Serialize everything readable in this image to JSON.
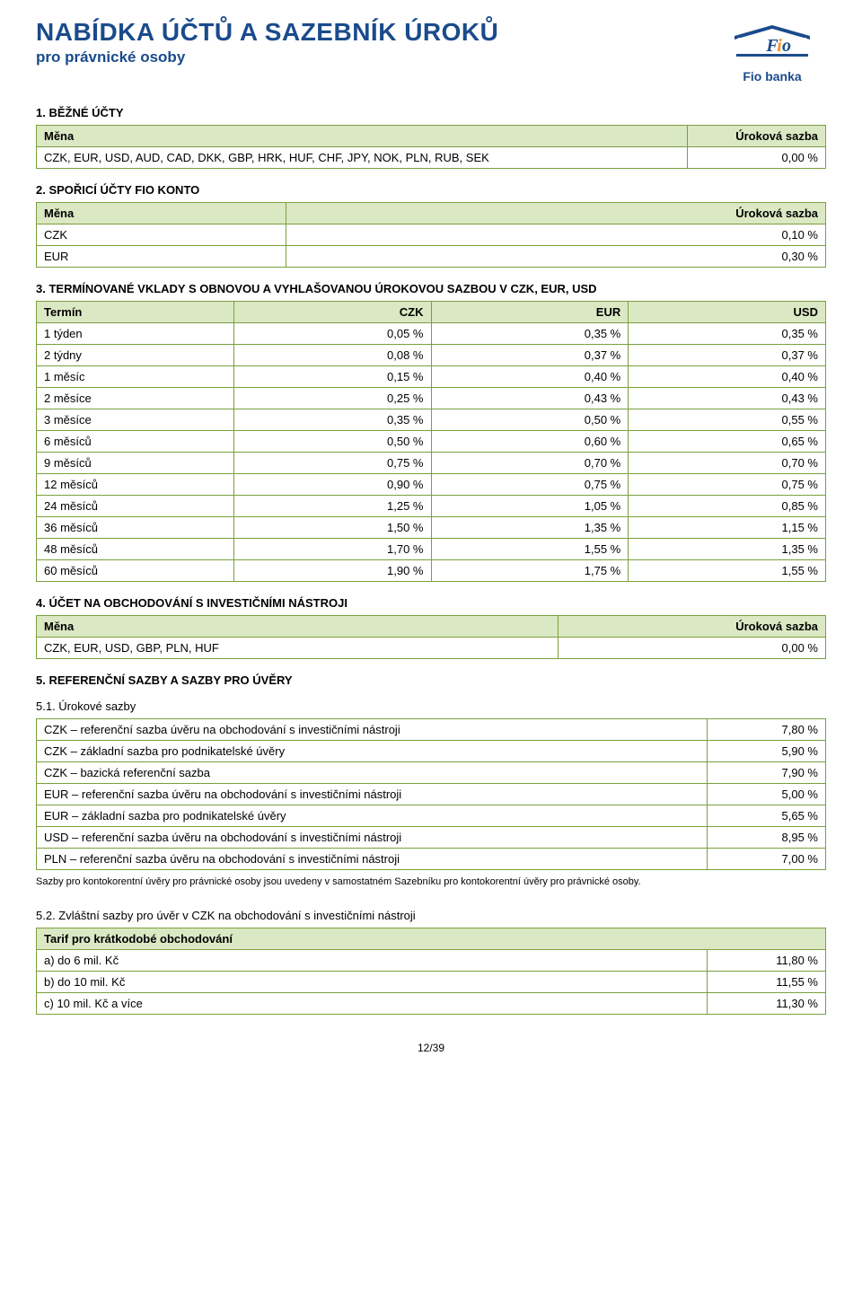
{
  "header": {
    "title": "NABÍDKA ÚČTŮ A SAZEBNÍK ÚROKŮ",
    "subtitle": "pro právnické osoby",
    "logoText": "Fio banka"
  },
  "colors": {
    "brandBlue": "#1a4b8c",
    "tableBorder": "#7aa03c",
    "tableHeaderBg": "#dbe8c4",
    "logoOrange": "#f7941e"
  },
  "section1": {
    "title": "1. BĚŽNÉ ÚČTY",
    "cols": [
      "Měna",
      "Úroková sazba"
    ],
    "row": {
      "currencies": "CZK, EUR, USD, AUD, CAD, DKK, GBP, HRK, HUF, CHF, JPY, NOK, PLN, RUB, SEK",
      "rate": "0,00 %"
    }
  },
  "section2": {
    "title": "2. SPOŘICÍ ÚČTY FIO KONTO",
    "cols": [
      "Měna",
      "Úroková sazba"
    ],
    "rows": [
      {
        "currency": "CZK",
        "rate": "0,10 %"
      },
      {
        "currency": "EUR",
        "rate": "0,30 %"
      }
    ]
  },
  "section3": {
    "title": "3. TERMÍNOVANÉ VKLADY S OBNOVOU A VYHLAŠOVANOU ÚROKOVOU SAZBOU V CZK, EUR, USD",
    "cols": [
      "Termín",
      "CZK",
      "EUR",
      "USD"
    ],
    "rows": [
      {
        "term": "1 týden",
        "czk": "0,05 %",
        "eur": "0,35 %",
        "usd": "0,35 %"
      },
      {
        "term": "2 týdny",
        "czk": "0,08 %",
        "eur": "0,37 %",
        "usd": "0,37 %"
      },
      {
        "term": "1 měsíc",
        "czk": "0,15 %",
        "eur": "0,40 %",
        "usd": "0,40 %"
      },
      {
        "term": "2 měsíce",
        "czk": "0,25 %",
        "eur": "0,43 %",
        "usd": "0,43 %"
      },
      {
        "term": "3 měsíce",
        "czk": "0,35 %",
        "eur": "0,50 %",
        "usd": "0,55 %"
      },
      {
        "term": "6 měsíců",
        "czk": "0,50 %",
        "eur": "0,60 %",
        "usd": "0,65 %"
      },
      {
        "term": "9 měsíců",
        "czk": "0,75 %",
        "eur": "0,70 %",
        "usd": "0,70 %"
      },
      {
        "term": "12 měsíců",
        "czk": "0,90 %",
        "eur": "0,75 %",
        "usd": "0,75 %"
      },
      {
        "term": "24 měsíců",
        "czk": "1,25 %",
        "eur": "1,05 %",
        "usd": "0,85 %"
      },
      {
        "term": "36 měsíců",
        "czk": "1,50 %",
        "eur": "1,35 %",
        "usd": "1,15 %"
      },
      {
        "term": "48 měsíců",
        "czk": "1,70 %",
        "eur": "1,55 %",
        "usd": "1,35 %"
      },
      {
        "term": "60 měsíců",
        "czk": "1,90 %",
        "eur": "1,75 %",
        "usd": "1,55 %"
      }
    ]
  },
  "section4": {
    "title": "4. ÚČET NA OBCHODOVÁNÍ S INVESTIČNÍMI NÁSTROJI",
    "cols": [
      "Měna",
      "Úroková sazba"
    ],
    "row": {
      "currencies": "CZK, EUR, USD, GBP, PLN, HUF",
      "rate": "0,00 %"
    }
  },
  "section5": {
    "title": "5. REFERENČNÍ SAZBY A SAZBY PRO ÚVĚRY",
    "sub1": "5.1. Úrokové sazby",
    "rows": [
      {
        "label": "CZK – referenční sazba úvěru na obchodování s investičními nástroji",
        "rate": "7,80 %"
      },
      {
        "label": "CZK – základní sazba pro podnikatelské úvěry",
        "rate": "5,90 %"
      },
      {
        "label": "CZK – bazická referenční sazba",
        "rate": "7,90 %"
      },
      {
        "label": "EUR – referenční sazba úvěru na obchodování s investičními nástroji",
        "rate": "5,00 %"
      },
      {
        "label": "EUR – základní sazba pro podnikatelské úvěry",
        "rate": "5,65 %"
      },
      {
        "label": "USD – referenční sazba úvěru na obchodování s investičními nástroji",
        "rate": "8,95 %"
      },
      {
        "label": "PLN – referenční sazba úvěru na obchodování s investičními nástroji",
        "rate": "7,00 %"
      }
    ],
    "note": "Sazby pro kontokorentní úvěry pro právnické osoby jsou uvedeny v samostatném Sazebníku pro kontokorentní úvěry pro právnické osoby."
  },
  "section52": {
    "title": "5.2. Zvláštní sazby pro úvěr v CZK na obchodování s investičními nástroji",
    "header": "Tarif pro krátkodobé obchodování",
    "rows": [
      {
        "label": "a) do 6 mil. Kč",
        "rate": "11,80 %"
      },
      {
        "label": "b) do 10 mil. Kč",
        "rate": "11,55 %"
      },
      {
        "label": "c) 10 mil. Kč a více",
        "rate": "11,30 %"
      }
    ]
  },
  "pageNumber": "12/39"
}
